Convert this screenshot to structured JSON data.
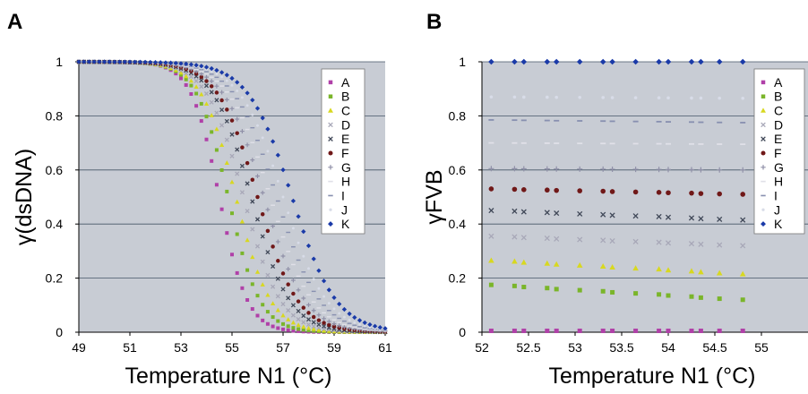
{
  "chart_data": [
    {
      "panel": "A",
      "type": "scatter",
      "xlabel": "Temperature N1 (oC)",
      "ylabel": "γ(dsDNA)",
      "xlim": [
        49,
        61
      ],
      "ylim": [
        0,
        1
      ],
      "xticks": [
        "49",
        "51",
        "53",
        "55",
        "57",
        "59",
        "61"
      ],
      "yticks": [
        "0",
        "0.2",
        "0.4",
        "0.6",
        "0.8",
        "1"
      ],
      "grid": "horizontal",
      "legend_position": "top-right",
      "series_params": [
        {
          "name": "A",
          "tm": 54.5,
          "w": 0.55
        },
        {
          "name": "B",
          "tm": 54.85,
          "w": 0.62
        },
        {
          "name": "C",
          "tm": 55.15,
          "w": 0.68
        },
        {
          "name": "D",
          "tm": 55.45,
          "w": 0.72
        },
        {
          "name": "E",
          "tm": 55.75,
          "w": 0.75
        },
        {
          "name": "F",
          "tm": 56.0,
          "w": 0.78
        },
        {
          "name": "G",
          "tm": 56.25,
          "w": 0.8
        },
        {
          "name": "H",
          "tm": 56.5,
          "w": 0.82
        },
        {
          "name": "I",
          "tm": 56.75,
          "w": 0.84
        },
        {
          "name": "J",
          "tm": 57.0,
          "w": 0.85
        },
        {
          "name": "K",
          "tm": 57.35,
          "w": 0.86
        }
      ],
      "x_range": [
        49,
        61.1
      ],
      "x_step": 0.2
    },
    {
      "panel": "B",
      "type": "scatter",
      "xlabel": "Temperature N1 (oC)",
      "ylabel": "γFVB",
      "xlim": [
        52,
        55.5
      ],
      "ylim": [
        0,
        1
      ],
      "xticks": [
        "52",
        "52.5",
        "53",
        "53.5",
        "54",
        "54.5",
        "55"
      ],
      "yticks": [
        "0",
        "0.2",
        "0.4",
        "0.6",
        "0.8",
        "1"
      ],
      "grid": "horizontal",
      "legend_position": "top-right",
      "x": [
        52.1,
        52.35,
        52.45,
        52.7,
        52.8,
        53.05,
        53.3,
        53.4,
        53.65,
        53.9,
        54.0,
        54.25,
        54.35,
        54.55,
        54.8
      ],
      "series": [
        {
          "name": "A",
          "y0": 0.005,
          "y1": 0.005
        },
        {
          "name": "B",
          "y0": 0.175,
          "y1": 0.12
        },
        {
          "name": "C",
          "y0": 0.265,
          "y1": 0.215
        },
        {
          "name": "D",
          "y0": 0.355,
          "y1": 0.32
        },
        {
          "name": "E",
          "y0": 0.45,
          "y1": 0.415
        },
        {
          "name": "F",
          "y0": 0.53,
          "y1": 0.51
        },
        {
          "name": "G",
          "y0": 0.605,
          "y1": 0.6
        },
        {
          "name": "H",
          "y0": 0.7,
          "y1": 0.695
        },
        {
          "name": "I",
          "y0": 0.785,
          "y1": 0.775
        },
        {
          "name": "J",
          "y0": 0.87,
          "y1": 0.865
        },
        {
          "name": "K",
          "y0": 1.0,
          "y1": 1.0
        }
      ]
    }
  ],
  "series_styles": [
    {
      "name": "A",
      "color": "#b040a8",
      "marker": "square"
    },
    {
      "name": "B",
      "color": "#7ab52a",
      "marker": "square"
    },
    {
      "name": "C",
      "color": "#d8d820",
      "marker": "triangle"
    },
    {
      "name": "D",
      "color": "#a8a8b8",
      "marker": "x"
    },
    {
      "name": "E",
      "color": "#404858",
      "marker": "x"
    },
    {
      "name": "F",
      "color": "#701818",
      "marker": "circle"
    },
    {
      "name": "G",
      "color": "#9090a8",
      "marker": "plus"
    },
    {
      "name": "H",
      "color": "#e0e0e8",
      "marker": "dash"
    },
    {
      "name": "I",
      "color": "#8890b0",
      "marker": "dash"
    },
    {
      "name": "J",
      "color": "#d8dce8",
      "marker": "dot"
    },
    {
      "name": "K",
      "color": "#1a3aa8",
      "marker": "diamond"
    }
  ],
  "colors": {
    "plot_background": "#c8ccd4",
    "gridline": "#445566"
  }
}
